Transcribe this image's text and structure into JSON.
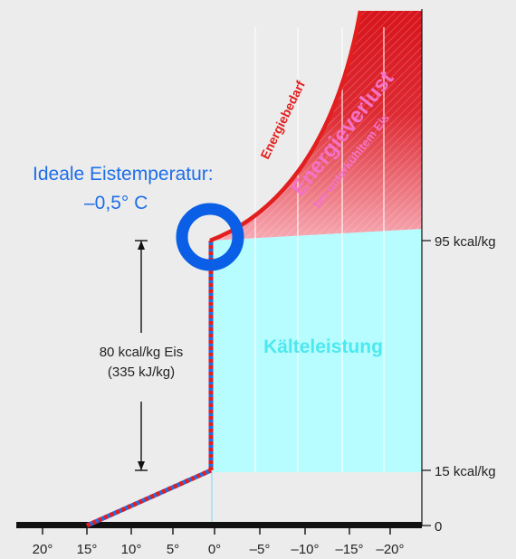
{
  "title_line1": "Ideale Eistemperatur:",
  "title_line2": "–0,5° C",
  "curve_label": "Energiebedarf",
  "loss_label": "Energieverlust",
  "loss_sublabel": "bei unterkühltem Eis",
  "cooling_label": "Kälteleistung",
  "measure_line1": "80 kcal/kg Eis",
  "measure_line2": "(335 kJ/kg)",
  "right_axis_labels": [
    "95 kcal/kg",
    "15 kcal/kg",
    "0"
  ],
  "x_tick_labels": [
    "20°",
    "15°",
    "10°",
    "5°",
    "0°",
    "–5°",
    "–10°",
    "–15°",
    "–20°"
  ],
  "colors": {
    "background": "#ececec",
    "title": "#1e6ee8",
    "ring": "#0a5fe6",
    "curve": "#e31e1e",
    "loss_fill_top": "#d8141c",
    "loss_fill_bottom": "#f7aab4",
    "loss_label": "#f472c8",
    "cooling_fill": "#b7fdff",
    "cooling_label": "#4de8ee",
    "axis": "#111111",
    "text": "#222222"
  }
}
